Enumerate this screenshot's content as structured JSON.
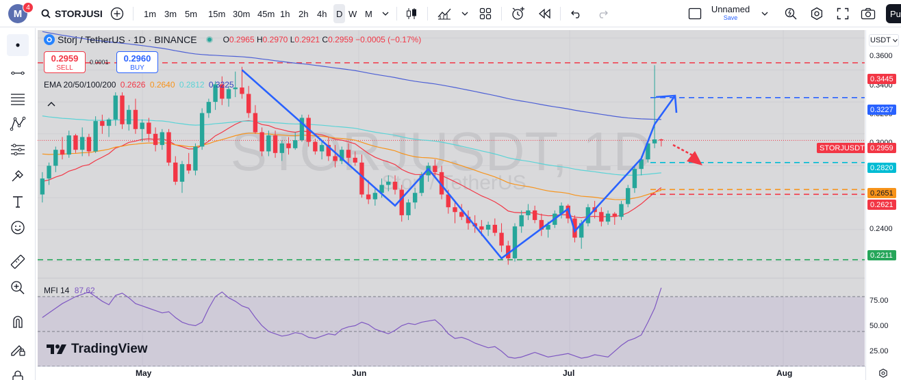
{
  "topbar": {
    "avatar_letter": "M",
    "notifications": "4",
    "symbol": "STORJUSI",
    "timeframes": [
      "1m",
      "3m",
      "5m",
      "15m",
      "30m",
      "45m",
      "1h",
      "2h",
      "4h",
      "D",
      "W",
      "M"
    ],
    "active_timeframe": "D",
    "layout_name": "Unnamed",
    "save_label": "Save",
    "publish_label": "Pu"
  },
  "legend": {
    "title": "Storj / TetherUS · 1D · BINANCE",
    "o_label": "O",
    "o_value": "0.2965",
    "h_label": "H",
    "h_value": "0.2970",
    "l_label": "L",
    "l_value": "0.2921",
    "c_label": "C",
    "c_value": "0.2959",
    "change": "−0.0005 (−0.17%)",
    "sell_price": "0.2959",
    "sell_label": "SELL",
    "spread": "0.0001",
    "buy_price": "0.2960",
    "buy_label": "BUY",
    "ema_label": "EMA 20/50/100/200",
    "ema_values": [
      "0.2626",
      "0.2640",
      "0.2812",
      "0.3225"
    ],
    "mfi_label": "MFI 14",
    "mfi_value": "87.62"
  },
  "watermark": {
    "big": "STORJUSDT, 1D",
    "small": "Storj / TetherUS"
  },
  "branding": "TradingView",
  "price_axis": {
    "currency": "USDT",
    "labels": [
      "0.3600",
      "0.3400",
      "0.3200",
      "0.3000",
      "0.2400"
    ],
    "mfi_labels": [
      "75.00",
      "50.00",
      "25.00"
    ],
    "tags": {
      "level_top": "0.3445",
      "level_blue": "0.3227",
      "symbol_tag": "STORJUSDT",
      "last": "0.2959",
      "level_cyan": "0.2820",
      "ema_orange": "0.2651",
      "level_red": "0.2621",
      "level_green": "0.2211"
    }
  },
  "time_axis": {
    "labels": [
      "May",
      "Jun",
      "Jul",
      "Aug"
    ]
  },
  "colors": {
    "up": "#26a69a",
    "down": "#f23645",
    "ema20": "#f23645",
    "ema50": "#f7931a",
    "ema100": "#5ad3d6",
    "ema200": "#4c5fd5",
    "drawing": "#2962ff",
    "mfi": "#7e57c2"
  },
  "chart_data": {
    "type": "candlestick",
    "interval": "1D",
    "ohlc": [
      [
        0.262,
        0.276,
        0.257,
        0.272
      ],
      [
        0.272,
        0.282,
        0.268,
        0.28
      ],
      [
        0.28,
        0.292,
        0.276,
        0.29
      ],
      [
        0.29,
        0.298,
        0.284,
        0.287
      ],
      [
        0.287,
        0.302,
        0.285,
        0.299
      ],
      [
        0.299,
        0.3,
        0.288,
        0.29
      ],
      [
        0.29,
        0.304,
        0.286,
        0.298
      ],
      [
        0.298,
        0.3,
        0.286,
        0.289
      ],
      [
        0.289,
        0.311,
        0.288,
        0.308
      ],
      [
        0.308,
        0.312,
        0.3,
        0.305
      ],
      [
        0.305,
        0.31,
        0.298,
        0.309
      ],
      [
        0.309,
        0.326,
        0.305,
        0.324
      ],
      [
        0.324,
        0.326,
        0.303,
        0.306
      ],
      [
        0.306,
        0.318,
        0.302,
        0.315
      ],
      [
        0.315,
        0.322,
        0.3,
        0.303
      ],
      [
        0.303,
        0.309,
        0.295,
        0.307
      ],
      [
        0.307,
        0.31,
        0.295,
        0.3
      ],
      [
        0.3,
        0.304,
        0.289,
        0.293
      ],
      [
        0.293,
        0.303,
        0.29,
        0.301
      ],
      [
        0.301,
        0.303,
        0.28,
        0.282
      ],
      [
        0.282,
        0.286,
        0.268,
        0.27
      ],
      [
        0.27,
        0.283,
        0.263,
        0.281
      ],
      [
        0.281,
        0.288,
        0.275,
        0.277
      ],
      [
        0.277,
        0.294,
        0.274,
        0.292
      ],
      [
        0.292,
        0.316,
        0.29,
        0.313
      ],
      [
        0.313,
        0.322,
        0.31,
        0.32
      ],
      [
        0.32,
        0.333,
        0.315,
        0.331
      ],
      [
        0.331,
        0.336,
        0.318,
        0.322
      ],
      [
        0.322,
        0.33,
        0.317,
        0.328
      ],
      [
        0.328,
        0.339,
        0.323,
        0.329
      ],
      [
        0.329,
        0.342,
        0.322,
        0.325
      ],
      [
        0.325,
        0.33,
        0.31,
        0.313
      ],
      [
        0.313,
        0.318,
        0.3,
        0.301
      ],
      [
        0.301,
        0.304,
        0.286,
        0.289
      ],
      [
        0.289,
        0.302,
        0.286,
        0.299
      ],
      [
        0.299,
        0.302,
        0.285,
        0.288
      ],
      [
        0.288,
        0.296,
        0.283,
        0.294
      ],
      [
        0.294,
        0.298,
        0.287,
        0.291
      ],
      [
        0.291,
        0.301,
        0.29,
        0.296
      ],
      [
        0.296,
        0.312,
        0.295,
        0.31
      ],
      [
        0.31,
        0.312,
        0.292,
        0.295
      ],
      [
        0.295,
        0.297,
        0.287,
        0.289
      ],
      [
        0.289,
        0.296,
        0.284,
        0.293
      ],
      [
        0.293,
        0.298,
        0.283,
        0.286
      ],
      [
        0.286,
        0.293,
        0.279,
        0.283
      ],
      [
        0.283,
        0.292,
        0.281,
        0.29
      ],
      [
        0.29,
        0.294,
        0.281,
        0.285
      ],
      [
        0.285,
        0.289,
        0.28,
        0.282
      ],
      [
        0.282,
        0.287,
        0.26,
        0.262
      ],
      [
        0.262,
        0.271,
        0.256,
        0.259
      ],
      [
        0.259,
        0.266,
        0.255,
        0.263
      ],
      [
        0.263,
        0.272,
        0.26,
        0.268
      ],
      [
        0.268,
        0.274,
        0.264,
        0.27
      ],
      [
        0.27,
        0.274,
        0.262,
        0.265
      ],
      [
        0.265,
        0.268,
        0.245,
        0.249
      ],
      [
        0.249,
        0.259,
        0.246,
        0.257
      ],
      [
        0.257,
        0.266,
        0.253,
        0.263
      ],
      [
        0.263,
        0.276,
        0.261,
        0.274
      ],
      [
        0.274,
        0.282,
        0.27,
        0.28
      ],
      [
        0.28,
        0.284,
        0.273,
        0.276
      ],
      [
        0.276,
        0.28,
        0.259,
        0.262
      ],
      [
        0.262,
        0.265,
        0.25,
        0.254
      ],
      [
        0.254,
        0.258,
        0.244,
        0.251
      ],
      [
        0.251,
        0.256,
        0.246,
        0.248
      ],
      [
        0.248,
        0.252,
        0.24,
        0.244
      ],
      [
        0.244,
        0.249,
        0.238,
        0.242
      ],
      [
        0.242,
        0.246,
        0.236,
        0.24
      ],
      [
        0.24,
        0.245,
        0.236,
        0.243
      ],
      [
        0.243,
        0.247,
        0.236,
        0.238
      ],
      [
        0.238,
        0.244,
        0.226,
        0.23
      ],
      [
        0.23,
        0.233,
        0.218,
        0.222
      ],
      [
        0.222,
        0.244,
        0.22,
        0.242
      ],
      [
        0.242,
        0.252,
        0.238,
        0.249
      ],
      [
        0.249,
        0.256,
        0.246,
        0.252
      ],
      [
        0.252,
        0.255,
        0.244,
        0.246
      ],
      [
        0.246,
        0.25,
        0.236,
        0.24
      ],
      [
        0.24,
        0.245,
        0.235,
        0.243
      ],
      [
        0.243,
        0.252,
        0.241,
        0.25
      ],
      [
        0.25,
        0.257,
        0.247,
        0.255
      ],
      [
        0.255,
        0.256,
        0.244,
        0.247
      ],
      [
        0.247,
        0.249,
        0.232,
        0.235
      ],
      [
        0.235,
        0.246,
        0.228,
        0.244
      ],
      [
        0.244,
        0.256,
        0.242,
        0.254
      ],
      [
        0.254,
        0.258,
        0.247,
        0.251
      ],
      [
        0.251,
        0.254,
        0.242,
        0.245
      ],
      [
        0.245,
        0.252,
        0.243,
        0.25
      ],
      [
        0.25,
        0.251,
        0.243,
        0.248
      ],
      [
        0.248,
        0.258,
        0.246,
        0.256
      ],
      [
        0.256,
        0.268,
        0.254,
        0.266
      ],
      [
        0.266,
        0.28,
        0.263,
        0.278
      ],
      [
        0.278,
        0.286,
        0.274,
        0.284
      ],
      [
        0.284,
        0.296,
        0.282,
        0.294
      ],
      [
        0.294,
        0.343,
        0.291,
        0.2965
      ],
      [
        0.2965,
        0.297,
        0.2921,
        0.2959
      ]
    ],
    "mfi": [
      62,
      66,
      70,
      74,
      77,
      80,
      82,
      84,
      80,
      76,
      73,
      81,
      83,
      79,
      74,
      72,
      70,
      68,
      66,
      67,
      62,
      58,
      56,
      55,
      58,
      70,
      80,
      84,
      79,
      76,
      72,
      70,
      62,
      55,
      50,
      48,
      46,
      47,
      49,
      48,
      45,
      44,
      46,
      48,
      47,
      52,
      54,
      55,
      58,
      56,
      52,
      50,
      48,
      51,
      55,
      57,
      56,
      58,
      59,
      60,
      55,
      48,
      44,
      45,
      43,
      40,
      38,
      36,
      37,
      33,
      28,
      27,
      28,
      30,
      32,
      30,
      28,
      29,
      30,
      31,
      29,
      27,
      28,
      30,
      29,
      28,
      33,
      38,
      42,
      44,
      47,
      58,
      70,
      87.62
    ],
    "ylim": [
      0.21,
      0.365
    ],
    "mfi_ylim": [
      20,
      90
    ]
  }
}
